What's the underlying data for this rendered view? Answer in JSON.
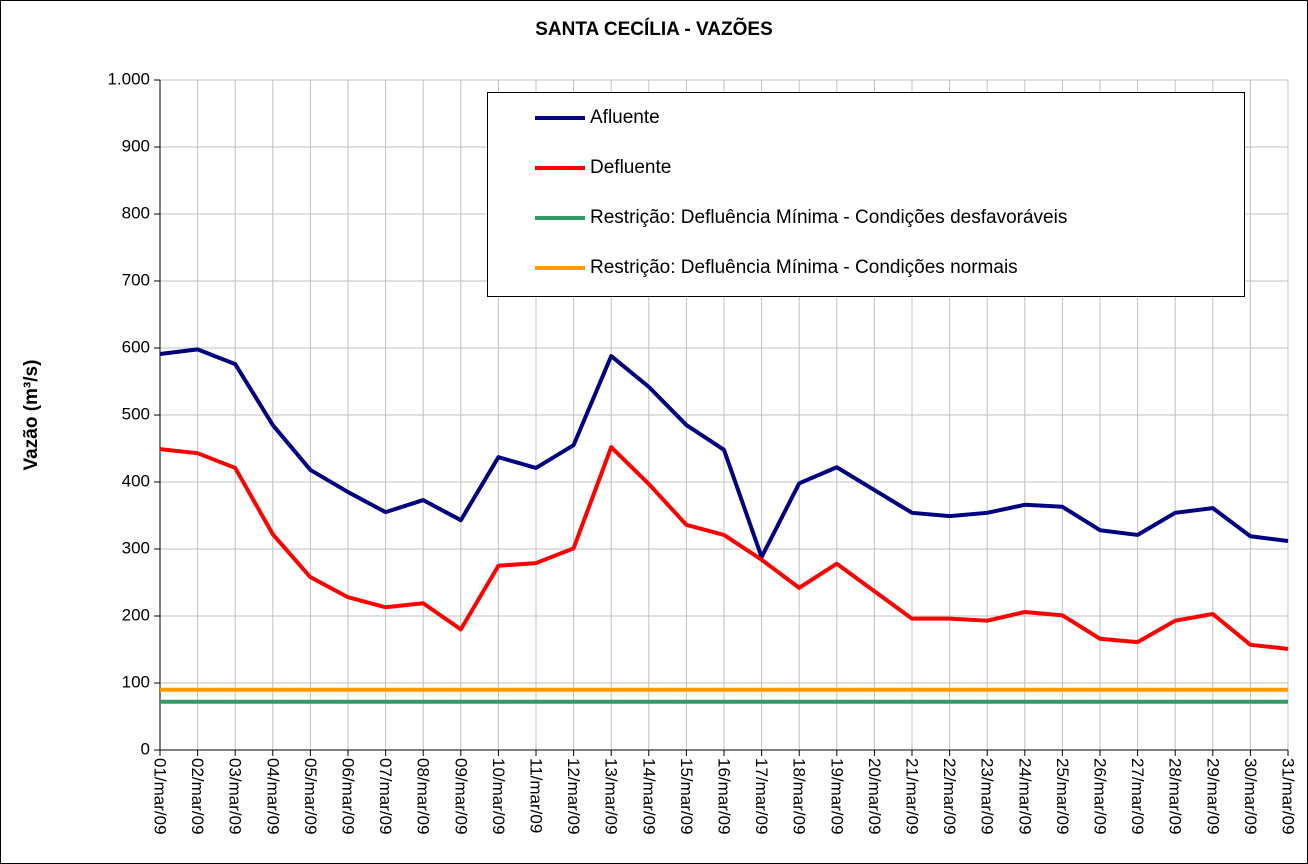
{
  "chart_data": {
    "type": "line",
    "title": "SANTA CECÍLIA - VAZÕES",
    "y_label": "Vazão (m³/s)",
    "categories": [
      "01/mar/09",
      "02/mar/09",
      "03/mar/09",
      "04/mar/09",
      "05/mar/09",
      "06/mar/09",
      "07/mar/09",
      "08/mar/09",
      "09/mar/09",
      "10/mar/09",
      "11/mar/09",
      "12/mar/09",
      "13/mar/09",
      "14/mar/09",
      "15/mar/09",
      "16/mar/09",
      "17/mar/09",
      "18/mar/09",
      "19/mar/09",
      "20/mar/09",
      "21/mar/09",
      "22/mar/09",
      "23/mar/09",
      "24/mar/09",
      "25/mar/09",
      "26/mar/09",
      "27/mar/09",
      "28/mar/09",
      "29/mar/09",
      "30/mar/09",
      "31/mar/09"
    ],
    "series": [
      {
        "name": "Afluente",
        "color": "#000080",
        "values": [
          591,
          598,
          576,
          485,
          418,
          385,
          355,
          373,
          343,
          437,
          421,
          455,
          588,
          542,
          485,
          448,
          288,
          398,
          422,
          388,
          354,
          349,
          354,
          366,
          363,
          328,
          321,
          354,
          361,
          319,
          312
        ]
      },
      {
        "name": "Defluente",
        "color": "#ff0000",
        "values": [
          449,
          443,
          421,
          322,
          258,
          228,
          213,
          219,
          180,
          275,
          279,
          301,
          452,
          397,
          336,
          321,
          284,
          242,
          278,
          237,
          196,
          196,
          193,
          206,
          201,
          166,
          161,
          193,
          203,
          157,
          151
        ]
      },
      {
        "name": "Restrição: Defluência Mínima - Condições desfavoráveis",
        "color": "#339966",
        "values": [
          72,
          72,
          72,
          72,
          72,
          72,
          72,
          72,
          72,
          72,
          72,
          72,
          72,
          72,
          72,
          72,
          72,
          72,
          72,
          72,
          72,
          72,
          72,
          72,
          72,
          72,
          72,
          72,
          72,
          72,
          72
        ]
      },
      {
        "name": "Restrição: Defluência Mínima - Condições normais",
        "color": "#ff9900",
        "values": [
          90,
          90,
          90,
          90,
          90,
          90,
          90,
          90,
          90,
          90,
          90,
          90,
          90,
          90,
          90,
          90,
          90,
          90,
          90,
          90,
          90,
          90,
          90,
          90,
          90,
          90,
          90,
          90,
          90,
          90,
          90
        ]
      }
    ],
    "ylim": [
      0,
      1000
    ],
    "yticks": [
      0,
      100,
      200,
      300,
      400,
      500,
      600,
      700,
      800,
      900,
      {
        "value": 1000,
        "label": "1.000"
      }
    ],
    "grid": true
  }
}
